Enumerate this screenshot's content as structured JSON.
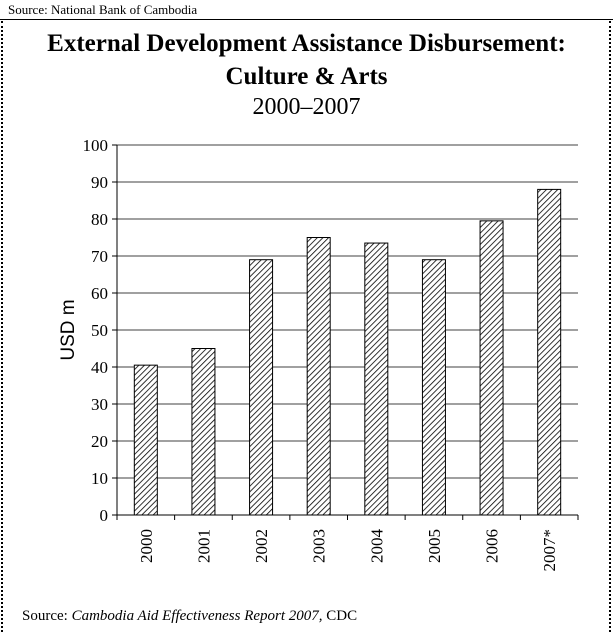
{
  "header": {
    "source_note": "Source: National Bank of Cambodia"
  },
  "footer": {
    "source_prefix": "Source: ",
    "source_title": "Cambodia Aid Effectiveness Report 2007,",
    "source_suffix": " CDC"
  },
  "chart_data": {
    "type": "bar",
    "title_line1": "External Development Assistance Disbursement:",
    "title_line2": "Culture & Arts",
    "subtitle": "2000–2007",
    "xlabel": "",
    "ylabel": "USD m",
    "ylim": [
      0,
      100
    ],
    "yticks": [
      0,
      10,
      20,
      30,
      40,
      50,
      60,
      70,
      80,
      90,
      100
    ],
    "categories": [
      "2000",
      "2001",
      "2002",
      "2003",
      "2004",
      "2005",
      "2006",
      "2007*"
    ],
    "values": [
      40.5,
      45,
      69,
      75,
      73.5,
      69,
      79.5,
      88
    ],
    "grid": true,
    "bar_pattern": "diagonal-hatch",
    "bar_color": "#000000",
    "legend": "none"
  }
}
